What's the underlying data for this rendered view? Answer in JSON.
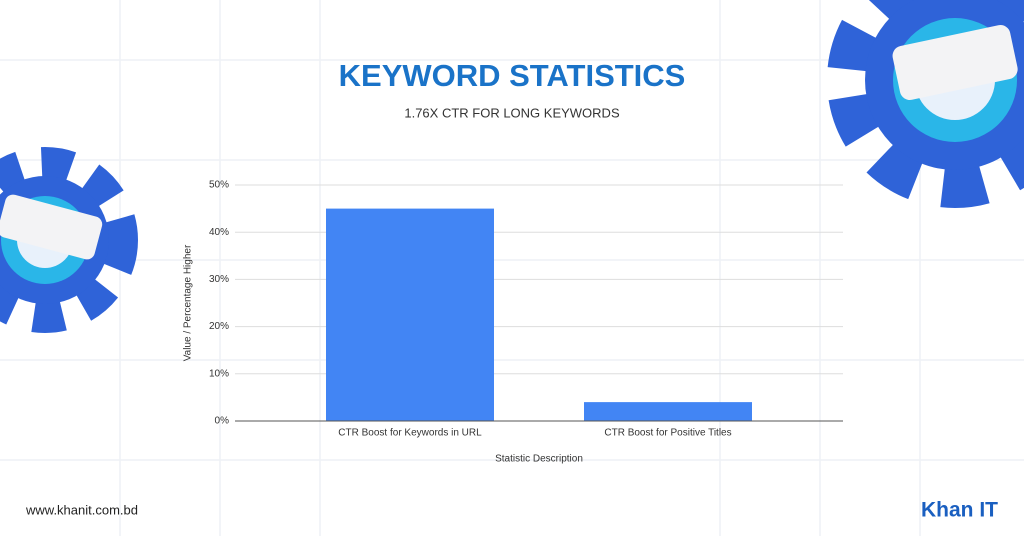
{
  "chart_data": {
    "type": "bar",
    "title": "KEYWORD STATISTICS",
    "subtitle": "1.76X CTR FOR LONG KEYWORDS",
    "x_label": "Statistic Description",
    "y_label": "Value / Percentage Higher",
    "categories": [
      "CTR Boost for Keywords in URL",
      "CTR Boost for Positive Titles"
    ],
    "values": [
      45,
      4
    ],
    "color": "#4285f4",
    "ylim": [
      0,
      50
    ],
    "yticks": [
      {
        "value": 0,
        "label": "0%"
      },
      {
        "value": 10,
        "label": "10%"
      },
      {
        "value": 20,
        "label": "20%"
      },
      {
        "value": 30,
        "label": "30%"
      },
      {
        "value": 40,
        "label": "40%"
      },
      {
        "value": 50,
        "label": "50%"
      }
    ],
    "grid": true
  },
  "footer": {
    "website": "www.khanit.com.bd",
    "logo": "Khan IT"
  }
}
